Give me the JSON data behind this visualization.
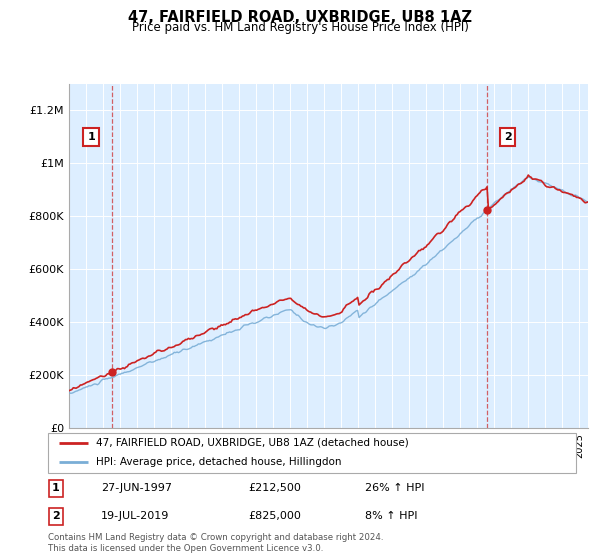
{
  "title": "47, FAIRFIELD ROAD, UXBRIDGE, UB8 1AZ",
  "subtitle": "Price paid vs. HM Land Registry's House Price Index (HPI)",
  "legend_line1": "47, FAIRFIELD ROAD, UXBRIDGE, UB8 1AZ (detached house)",
  "legend_line2": "HPI: Average price, detached house, Hillingdon",
  "annotation1_date": "27-JUN-1997",
  "annotation1_price": "£212,500",
  "annotation1_hpi": "26% ↑ HPI",
  "annotation2_date": "19-JUL-2019",
  "annotation2_price": "£825,000",
  "annotation2_hpi": "8% ↑ HPI",
  "footer": "Contains HM Land Registry data © Crown copyright and database right 2024.\nThis data is licensed under the Open Government Licence v3.0.",
  "hpi_color": "#7aaed6",
  "price_color": "#cc2222",
  "annotation_box_color": "#cc2222",
  "bg_color": "#ddeeff",
  "ylim": [
    0,
    1300000
  ],
  "yticks": [
    0,
    200000,
    400000,
    600000,
    800000,
    1000000,
    1200000
  ],
  "ytick_labels": [
    "£0",
    "£200K",
    "£400K",
    "£600K",
    "£800K",
    "£1M",
    "£1.2M"
  ],
  "sale1_x": 1997.5,
  "sale1_y": 212500,
  "sale2_x": 2019.58,
  "sale2_y": 825000,
  "xmin": 1995.0,
  "xmax": 2025.5
}
